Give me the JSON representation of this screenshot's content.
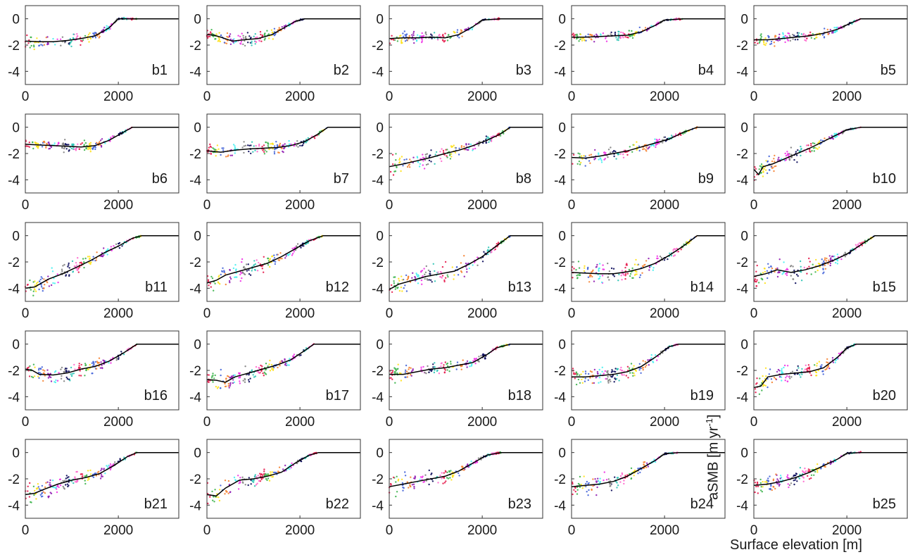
{
  "figure": {
    "xlabel": "Surface elevation [m]",
    "ylabel_main": "aSMB [m yr",
    "ylabel_sup": "-1",
    "ylabel_end": "]"
  },
  "chart_data": {
    "type": "scatter",
    "layout": "5x5 small multiples",
    "shared": {
      "xlim": [
        0,
        3300
      ],
      "ylim": [
        -5,
        1
      ],
      "xticks": [
        0,
        2000
      ],
      "yticks": [
        0,
        -2,
        -4
      ],
      "grid": false,
      "line_color": "#000000",
      "dot_palette": [
        "#e6194b",
        "#3cb44b",
        "#ffe119",
        "#4363d8",
        "#f58231",
        "#911eb4",
        "#46f0f0",
        "#f032e6",
        "#808080",
        "#0a0a5a",
        "#2ec4b6",
        "#ff66cc"
      ]
    },
    "panels": [
      {
        "label": "b1",
        "x": [
          0,
          300,
          600,
          900,
          1200,
          1500,
          1800,
          2000,
          2400,
          3300
        ],
        "y": [
          -1.7,
          -1.75,
          -1.75,
          -1.65,
          -1.5,
          -1.3,
          -0.7,
          0,
          0,
          0
        ]
      },
      {
        "label": "b2",
        "x": [
          0,
          150,
          300,
          550,
          800,
          1100,
          1400,
          1700,
          1900,
          2100,
          3300
        ],
        "y": [
          -1.2,
          -1.25,
          -1.4,
          -1.7,
          -1.6,
          -1.5,
          -1.2,
          -0.6,
          -0.2,
          0,
          0
        ]
      },
      {
        "label": "b3",
        "x": [
          0,
          300,
          600,
          900,
          1200,
          1500,
          1800,
          2000,
          2400,
          3300
        ],
        "y": [
          -1.5,
          -1.45,
          -1.45,
          -1.4,
          -1.45,
          -1.2,
          -0.6,
          -0.1,
          0,
          0
        ]
      },
      {
        "label": "b4",
        "x": [
          0,
          300,
          600,
          900,
          1200,
          1500,
          1800,
          2000,
          2400,
          3300
        ],
        "y": [
          -1.4,
          -1.4,
          -1.35,
          -1.3,
          -1.25,
          -1.0,
          -0.5,
          -0.1,
          0,
          0
        ]
      },
      {
        "label": "b5",
        "x": [
          0,
          300,
          600,
          900,
          1200,
          1500,
          1800,
          2100,
          2300,
          3300
        ],
        "y": [
          -1.6,
          -1.6,
          -1.5,
          -1.4,
          -1.3,
          -1.1,
          -0.8,
          -0.3,
          0,
          0
        ]
      },
      {
        "label": "b6",
        "x": [
          0,
          300,
          600,
          900,
          1200,
          1500,
          1800,
          2100,
          2300,
          3300
        ],
        "y": [
          -1.3,
          -1.35,
          -1.4,
          -1.45,
          -1.5,
          -1.4,
          -1.0,
          -0.4,
          0,
          0
        ]
      },
      {
        "label": "b7",
        "x": [
          0,
          300,
          600,
          900,
          1200,
          1500,
          1800,
          2100,
          2400,
          2600,
          3300
        ],
        "y": [
          -1.8,
          -1.9,
          -1.75,
          -1.65,
          -1.6,
          -1.55,
          -1.4,
          -1.1,
          -0.5,
          0,
          0
        ]
      },
      {
        "label": "b8",
        "x": [
          0,
          300,
          600,
          900,
          1200,
          1500,
          1800,
          2100,
          2400,
          2600,
          3300
        ],
        "y": [
          -3.0,
          -2.8,
          -2.55,
          -2.3,
          -2.0,
          -1.75,
          -1.4,
          -1.0,
          -0.5,
          0,
          0
        ]
      },
      {
        "label": "b9",
        "x": [
          0,
          300,
          600,
          900,
          1200,
          1500,
          1800,
          2100,
          2400,
          2700,
          3300
        ],
        "y": [
          -2.3,
          -2.35,
          -2.2,
          -2.0,
          -1.8,
          -1.5,
          -1.2,
          -0.9,
          -0.4,
          0,
          0
        ]
      },
      {
        "label": "b10",
        "x": [
          0,
          100,
          200,
          400,
          800,
          1200,
          1600,
          2000,
          2300,
          3300
        ],
        "y": [
          -3.2,
          -3.6,
          -3.0,
          -2.8,
          -2.2,
          -1.6,
          -0.9,
          -0.2,
          0,
          0
        ]
      },
      {
        "label": "b11",
        "x": [
          0,
          200,
          500,
          800,
          1100,
          1400,
          1700,
          2000,
          2300,
          2500,
          3300
        ],
        "y": [
          -4.0,
          -3.9,
          -3.3,
          -2.9,
          -2.4,
          -1.9,
          -1.3,
          -0.8,
          -0.2,
          0,
          0
        ]
      },
      {
        "label": "b12",
        "x": [
          0,
          200,
          400,
          700,
          1000,
          1300,
          1600,
          1900,
          2200,
          2500,
          3300
        ],
        "y": [
          -3.6,
          -3.4,
          -3.0,
          -2.7,
          -2.4,
          -2.1,
          -1.6,
          -1.0,
          -0.4,
          0,
          0
        ]
      },
      {
        "label": "b13",
        "x": [
          0,
          200,
          500,
          800,
          1100,
          1400,
          1700,
          2000,
          2300,
          2600,
          3300
        ],
        "y": [
          -4.1,
          -3.7,
          -3.4,
          -3.1,
          -2.9,
          -2.7,
          -2.2,
          -1.6,
          -0.8,
          0,
          0
        ]
      },
      {
        "label": "b14",
        "x": [
          0,
          300,
          600,
          900,
          1200,
          1500,
          1800,
          2100,
          2400,
          2700,
          3300
        ],
        "y": [
          -2.8,
          -2.85,
          -2.9,
          -2.9,
          -2.75,
          -2.5,
          -2.1,
          -1.5,
          -0.8,
          0,
          0
        ]
      },
      {
        "label": "b15",
        "x": [
          0,
          250,
          500,
          800,
          1100,
          1400,
          1700,
          2000,
          2300,
          2600,
          3300
        ],
        "y": [
          -3.1,
          -2.9,
          -2.6,
          -2.8,
          -2.6,
          -2.3,
          -1.9,
          -1.4,
          -0.7,
          0,
          0
        ]
      },
      {
        "label": "b16",
        "x": [
          0,
          150,
          300,
          600,
          900,
          1200,
          1500,
          1800,
          2100,
          2400,
          3300
        ],
        "y": [
          -1.9,
          -2.0,
          -2.3,
          -2.35,
          -2.2,
          -1.9,
          -1.7,
          -1.3,
          -0.7,
          0,
          0
        ]
      },
      {
        "label": "b17",
        "x": [
          0,
          200,
          400,
          600,
          900,
          1200,
          1500,
          1800,
          2100,
          2300,
          3300
        ],
        "y": [
          -2.7,
          -2.75,
          -2.9,
          -2.5,
          -2.2,
          -1.9,
          -1.6,
          -1.2,
          -0.5,
          0,
          0
        ]
      },
      {
        "label": "b18",
        "x": [
          0,
          300,
          600,
          900,
          1200,
          1500,
          1800,
          2100,
          2300,
          2600,
          3300
        ],
        "y": [
          -2.3,
          -2.3,
          -2.1,
          -1.9,
          -1.8,
          -1.6,
          -1.4,
          -0.8,
          -0.3,
          0,
          0
        ]
      },
      {
        "label": "b19",
        "x": [
          0,
          300,
          600,
          900,
          1200,
          1500,
          1800,
          2100,
          2300,
          3300
        ],
        "y": [
          -2.5,
          -2.5,
          -2.4,
          -2.3,
          -2.1,
          -1.7,
          -1.0,
          -0.2,
          0,
          0
        ]
      },
      {
        "label": "b20",
        "x": [
          0,
          150,
          300,
          600,
          900,
          1200,
          1500,
          1800,
          2000,
          2200,
          3300
        ],
        "y": [
          -3.3,
          -3.2,
          -2.5,
          -2.3,
          -2.2,
          -2.1,
          -1.8,
          -1.0,
          -0.3,
          0,
          0
        ]
      },
      {
        "label": "b21",
        "x": [
          0,
          200,
          400,
          700,
          1000,
          1300,
          1600,
          1900,
          2200,
          2400,
          3300
        ],
        "y": [
          -3.2,
          -3.1,
          -2.8,
          -2.4,
          -2.1,
          -1.9,
          -1.6,
          -1.0,
          -0.3,
          0,
          0
        ]
      },
      {
        "label": "b22",
        "x": [
          0,
          200,
          400,
          700,
          1000,
          1300,
          1600,
          1900,
          2200,
          2400,
          3300
        ],
        "y": [
          -3.2,
          -3.3,
          -2.7,
          -2.1,
          -2.0,
          -1.8,
          -1.5,
          -0.8,
          -0.2,
          0,
          0
        ]
      },
      {
        "label": "b23",
        "x": [
          0,
          300,
          600,
          900,
          1200,
          1500,
          1800,
          2100,
          2400,
          3300
        ],
        "y": [
          -2.6,
          -2.4,
          -2.2,
          -2.0,
          -1.8,
          -1.4,
          -0.8,
          -0.2,
          0,
          0
        ]
      },
      {
        "label": "b24",
        "x": [
          0,
          300,
          600,
          900,
          1200,
          1500,
          1800,
          2000,
          2300,
          3300
        ],
        "y": [
          -2.6,
          -2.5,
          -2.4,
          -2.2,
          -1.8,
          -1.2,
          -0.6,
          -0.1,
          0,
          0
        ]
      },
      {
        "label": "b25",
        "x": [
          0,
          300,
          600,
          900,
          1200,
          1500,
          1800,
          2000,
          2300,
          3300
        ],
        "y": [
          -2.5,
          -2.4,
          -2.2,
          -1.9,
          -1.5,
          -1.0,
          -0.5,
          -0.05,
          0,
          0
        ]
      }
    ]
  }
}
